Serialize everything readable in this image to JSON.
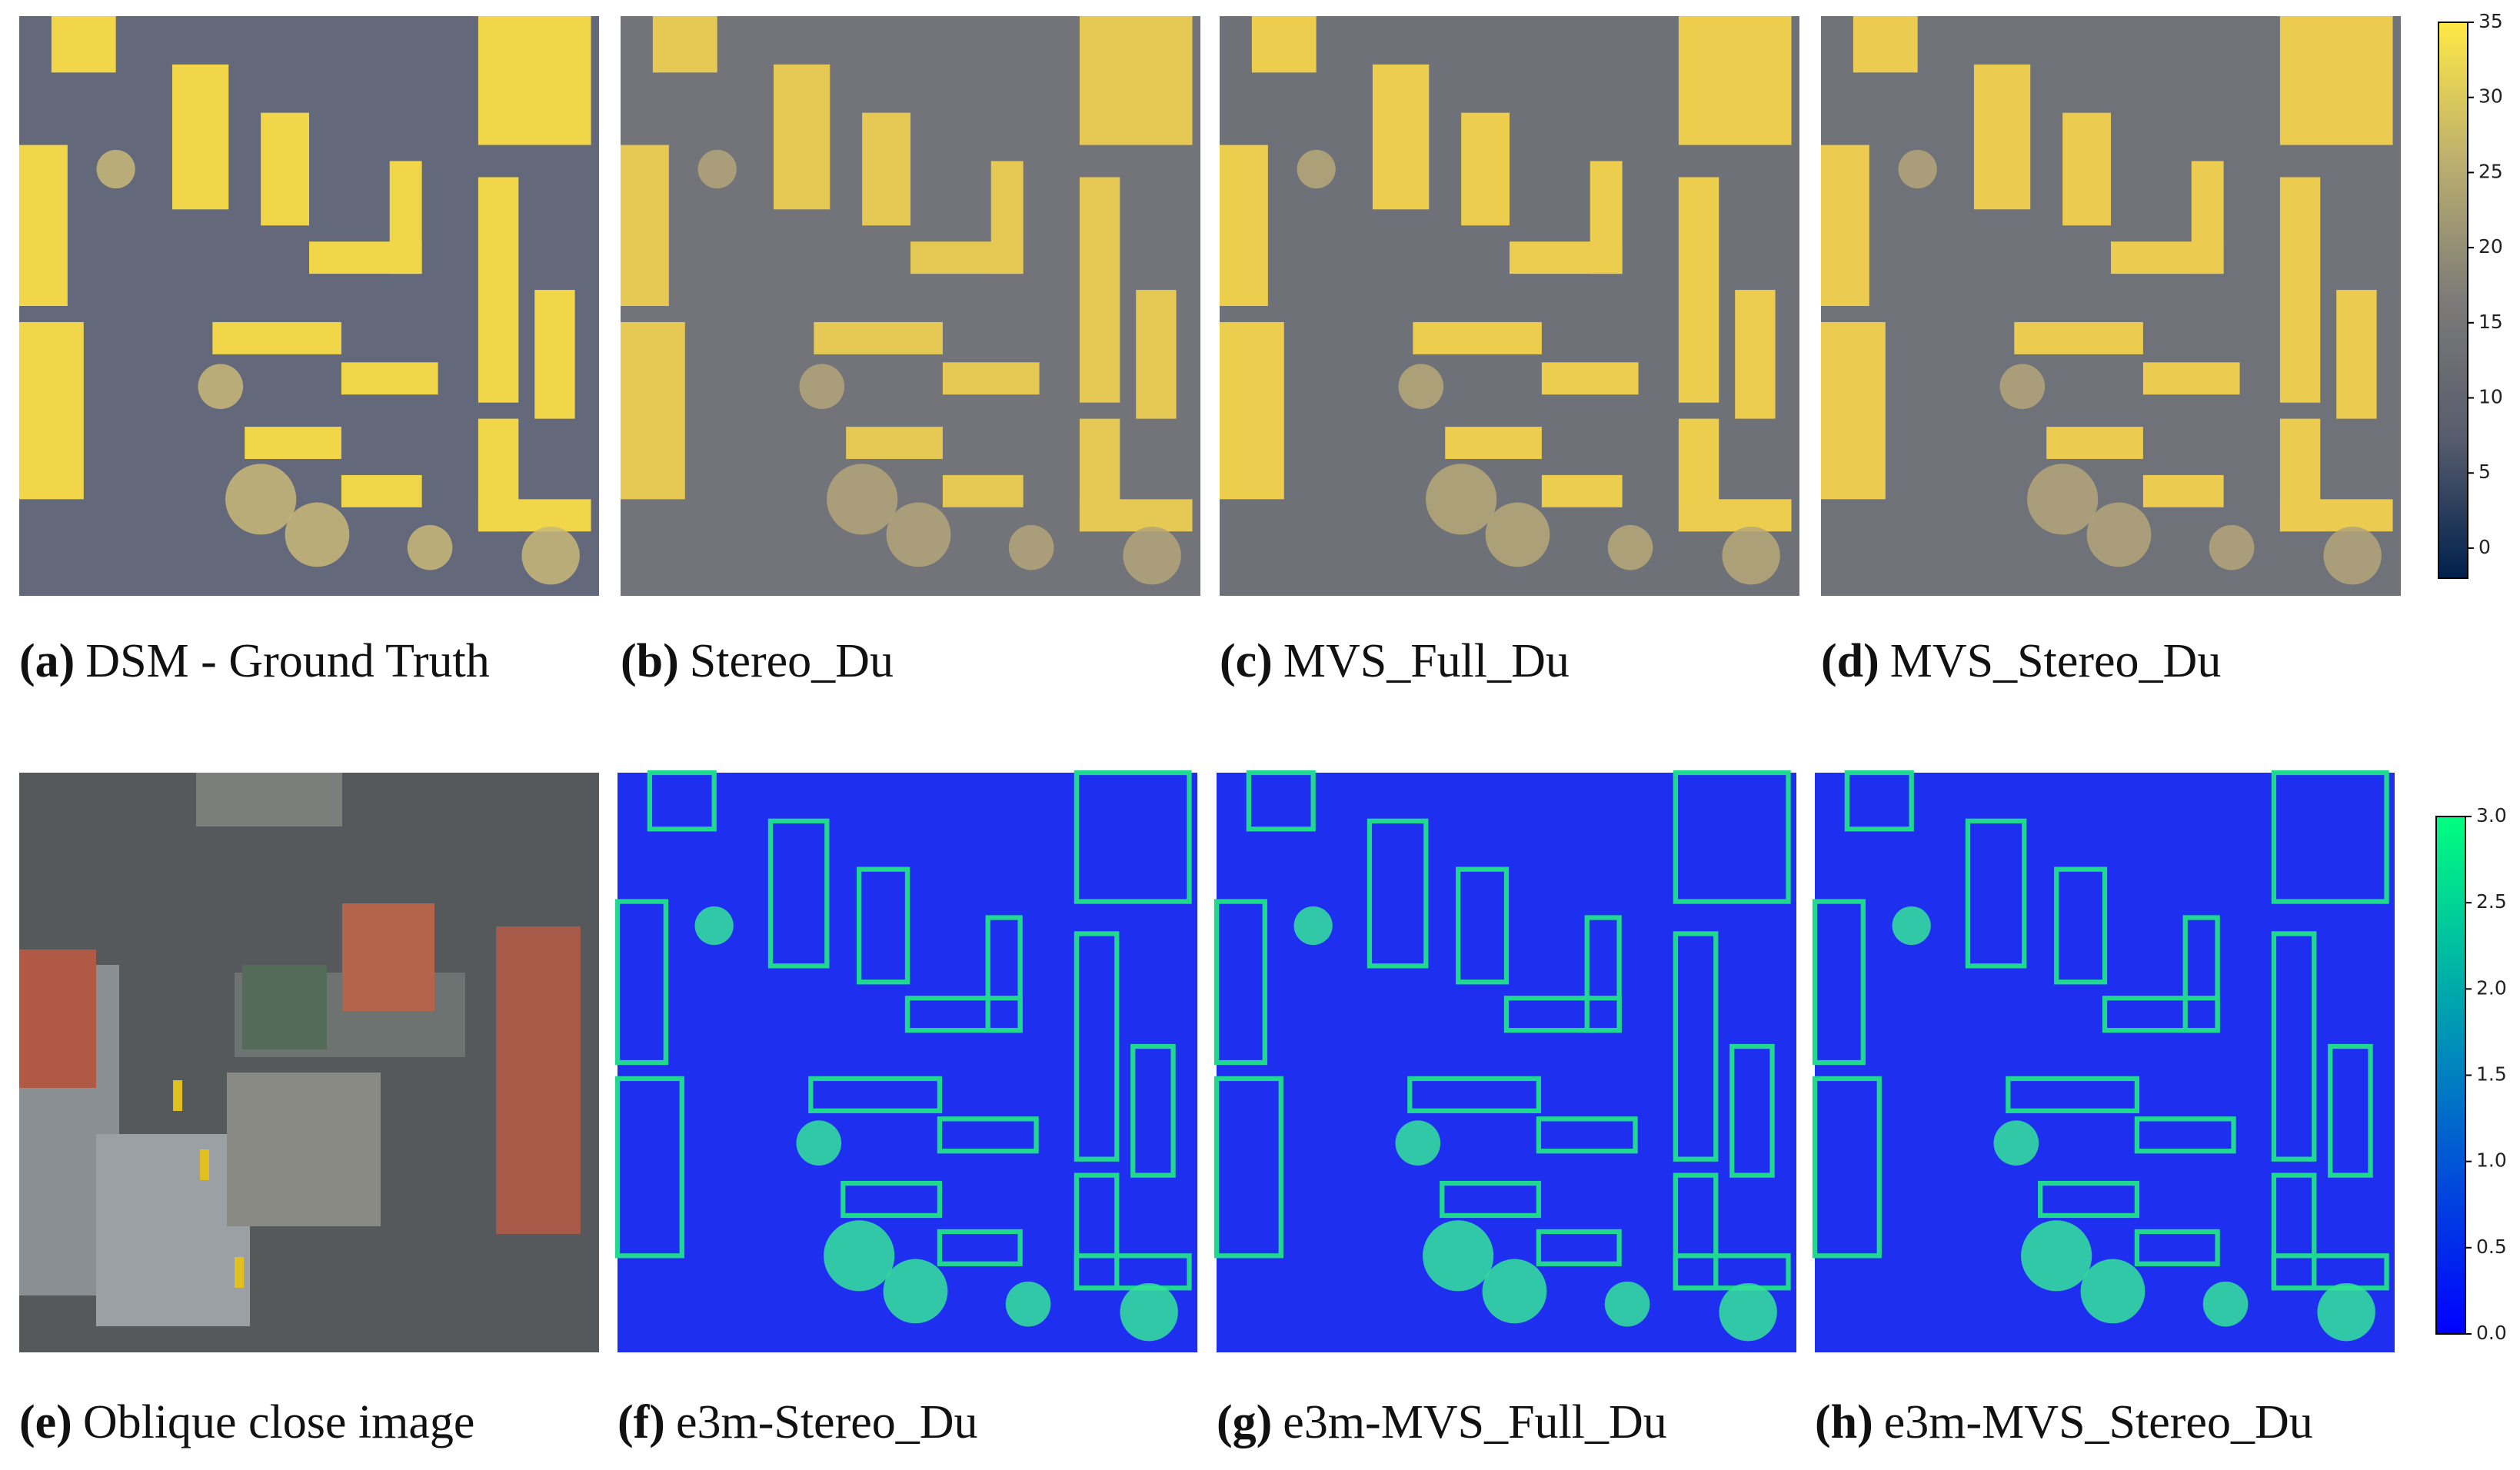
{
  "figure": {
    "panels": [
      {
        "label": "(a)",
        "caption": "DSM - Ground Truth"
      },
      {
        "label": "(b)",
        "caption": "Stereo_Du"
      },
      {
        "label": "(c)",
        "caption": "MVS_Full_Du"
      },
      {
        "label": "(d)",
        "caption": "MVS_Stereo_Du"
      },
      {
        "label": "(e)",
        "caption": "Oblique close image"
      },
      {
        "label": "(f)",
        "caption": "e3m-Stereo_Du"
      },
      {
        "label": "(g)",
        "caption": "e3m-MVS_Full_Du"
      },
      {
        "label": "(h)",
        "caption": "e3m-MVS_Stereo_Du"
      }
    ],
    "colorbars": [
      {
        "ylim": [
          -2,
          35
        ],
        "yticks": [
          0,
          5,
          10,
          15,
          20,
          25,
          30,
          35
        ],
        "colors": [
          "#00204c",
          "#575c6d",
          "#7c7b78",
          "#bcaf6f",
          "#ffe945"
        ]
      },
      {
        "ylim": [
          0,
          3
        ],
        "yticks": [
          {
            "value": 0,
            "label": "0.0"
          },
          {
            "value": 0.5,
            "label": "0.5"
          },
          {
            "value": 1,
            "label": "1.0"
          },
          {
            "value": 1.5,
            "label": "1.5"
          },
          {
            "value": 2,
            "label": "2.0"
          },
          {
            "value": 2.5,
            "label": "2.5"
          },
          {
            "value": 3,
            "label": "3.0"
          }
        ],
        "colors": [
          "#0000ff",
          "#0080c0",
          "#00ff80"
        ]
      }
    ]
  }
}
